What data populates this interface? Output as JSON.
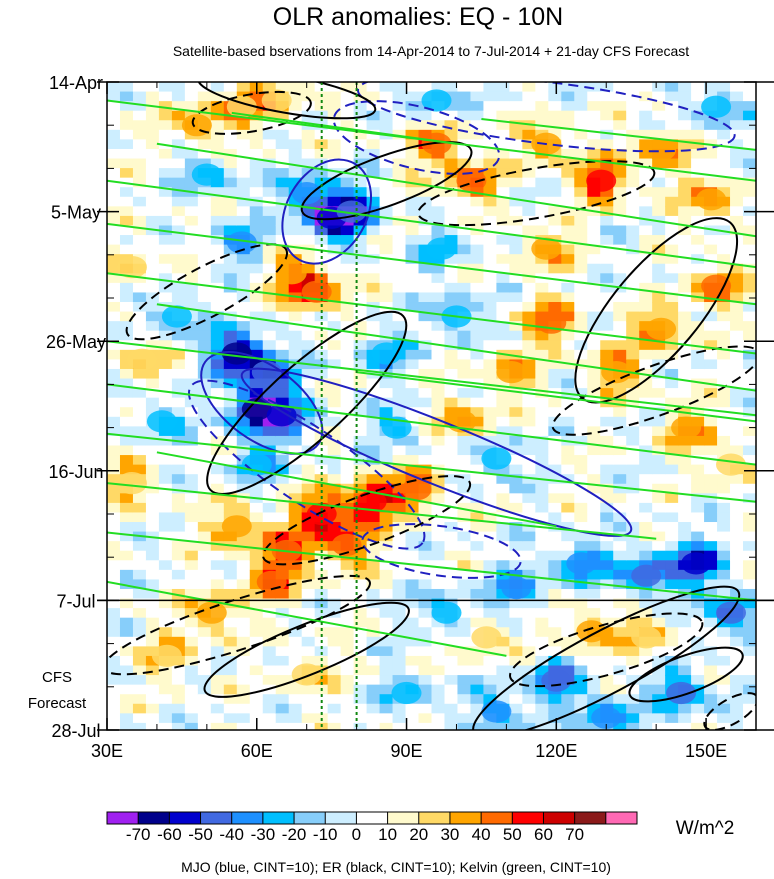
{
  "chart_data": {
    "type": "heatmap",
    "title": "OLR anomalies: EQ - 10N",
    "subtitle": "Satellite-based bservations from 14-Apr-2014 to 7-Jul-2014 + 21-day CFS Forecast",
    "x_axis": {
      "range": [
        30,
        160
      ],
      "ticks": [
        {
          "value": 30,
          "label": "30E"
        },
        {
          "value": 60,
          "label": "60E"
        },
        {
          "value": 90,
          "label": "90E"
        },
        {
          "value": 120,
          "label": "120E"
        },
        {
          "value": 150,
          "label": "150E"
        }
      ],
      "minor_step": 10
    },
    "y_axis": {
      "range_days": [
        0,
        105
      ],
      "inverted": true,
      "ticks": [
        {
          "day": 0,
          "label": "14-Apr"
        },
        {
          "day": 21,
          "label": "5-May"
        },
        {
          "day": 42,
          "label": "26-May"
        },
        {
          "day": 63,
          "label": "16-Jun"
        },
        {
          "day": 84,
          "label": "7-Jul"
        },
        {
          "day": 105,
          "label": "28-Jul"
        }
      ],
      "minor_step_days": 7
    },
    "forecast": {
      "start_day": 84,
      "label_line1": "CFS",
      "label_line2": "Forecast"
    },
    "reference_longitudes": [
      73,
      80
    ],
    "colorbar": {
      "units": "W/m^2",
      "labels": [
        "-70",
        "-60",
        "-50",
        "-40",
        "-30",
        "-20",
        "-10",
        "0",
        "10",
        "20",
        "30",
        "40",
        "50",
        "60",
        "70"
      ],
      "colors": [
        "#a020f0",
        "#00008b",
        "#0000cd",
        "#4169e1",
        "#1e90ff",
        "#00bfff",
        "#87cefa",
        "#cdeeff",
        "#ffffff",
        "#fffacd",
        "#ffd966",
        "#ffa500",
        "#ff6a00",
        "#ff0000",
        "#cd0000",
        "#8b1a1a",
        "#ff69b4"
      ]
    },
    "highlights": [
      {
        "lon": 48,
        "day": 7,
        "v": 32
      },
      {
        "lon": 57,
        "day": 4,
        "v": 28
      },
      {
        "lon": 64,
        "day": 3,
        "v": 26
      },
      {
        "lon": 96,
        "day": 10,
        "v": 40
      },
      {
        "lon": 103,
        "day": 16,
        "v": 44
      },
      {
        "lon": 118,
        "day": 10,
        "v": 34
      },
      {
        "lon": 129,
        "day": 16,
        "v": 52
      },
      {
        "lon": 141,
        "day": 11,
        "v": 38
      },
      {
        "lon": 151,
        "day": 19,
        "v": 36
      },
      {
        "lon": 70,
        "day": 18,
        "v": -38
      },
      {
        "lon": 75,
        "day": 22,
        "v": -56
      },
      {
        "lon": 79,
        "day": 21,
        "v": -48
      },
      {
        "lon": 57,
        "day": 26,
        "v": -32
      },
      {
        "lon": 67,
        "day": 31,
        "v": 36
      },
      {
        "lon": 72,
        "day": 34,
        "v": 48
      },
      {
        "lon": 56,
        "day": 44,
        "v": -66
      },
      {
        "lon": 62,
        "day": 47,
        "v": -48
      },
      {
        "lon": 60,
        "day": 53,
        "v": -62
      },
      {
        "lon": 65,
        "day": 54,
        "v": -52
      },
      {
        "lon": 44,
        "day": 38,
        "v": -28
      },
      {
        "lon": 37,
        "day": 45,
        "v": 24
      },
      {
        "lon": 41,
        "day": 55,
        "v": -22
      },
      {
        "lon": 35,
        "day": 65,
        "v": 28
      },
      {
        "lon": 73,
        "day": 70,
        "v": 55
      },
      {
        "lon": 83,
        "day": 68,
        "v": 58
      },
      {
        "lon": 92,
        "day": 66,
        "v": 40
      },
      {
        "lon": 78,
        "day": 75,
        "v": 46
      },
      {
        "lon": 66,
        "day": 76,
        "v": 44
      },
      {
        "lon": 56,
        "day": 72,
        "v": 38
      },
      {
        "lon": 63,
        "day": 81,
        "v": 40
      },
      {
        "lon": 51,
        "day": 86,
        "v": 32
      },
      {
        "lon": 101,
        "day": 55,
        "v": 34
      },
      {
        "lon": 111,
        "day": 47,
        "v": 30
      },
      {
        "lon": 119,
        "day": 39,
        "v": 40
      },
      {
        "lon": 132,
        "day": 47,
        "v": 36
      },
      {
        "lon": 141,
        "day": 40,
        "v": 38
      },
      {
        "lon": 152,
        "day": 33,
        "v": 40
      },
      {
        "lon": 146,
        "day": 56,
        "v": 34
      },
      {
        "lon": 118,
        "day": 27,
        "v": 30
      },
      {
        "lon": 100,
        "day": 38,
        "v": -30
      },
      {
        "lon": 108,
        "day": 61,
        "v": -28
      },
      {
        "lon": 88,
        "day": 56,
        "v": -26
      },
      {
        "lon": 125,
        "day": 78,
        "v": -40
      },
      {
        "lon": 138,
        "day": 80,
        "v": -46
      },
      {
        "lon": 148,
        "day": 78,
        "v": -60
      },
      {
        "lon": 155,
        "day": 86,
        "v": -44
      },
      {
        "lon": 112,
        "day": 82,
        "v": -38
      },
      {
        "lon": 98,
        "day": 86,
        "v": -30
      },
      {
        "lon": 120,
        "day": 97,
        "v": -46
      },
      {
        "lon": 130,
        "day": 103,
        "v": -40
      },
      {
        "lon": 145,
        "day": 99,
        "v": -42
      },
      {
        "lon": 108,
        "day": 102,
        "v": -34
      },
      {
        "lon": 90,
        "day": 99,
        "v": -24
      },
      {
        "lon": 127,
        "day": 89,
        "v": 30
      },
      {
        "lon": 138,
        "day": 90,
        "v": 26
      },
      {
        "lon": 152,
        "day": 4,
        "v": -30
      },
      {
        "lon": 96,
        "day": 3,
        "v": -24
      },
      {
        "lon": 106,
        "day": 90,
        "v": 22
      },
      {
        "lon": 42,
        "day": 93,
        "v": 24
      },
      {
        "lon": 70,
        "day": 96,
        "v": 20
      },
      {
        "lon": 60,
        "day": 62,
        "v": -30
      },
      {
        "lon": 86,
        "day": 44,
        "v": -28
      },
      {
        "lon": 97,
        "day": 27,
        "v": -22
      },
      {
        "lon": 50,
        "day": 15,
        "v": -26
      },
      {
        "lon": 35,
        "day": 30,
        "v": 20
      },
      {
        "lon": 155,
        "day": 62,
        "v": 22
      }
    ],
    "contours": [
      {
        "group": "mjo",
        "cx": 74,
        "cy": 21,
        "rx": 8,
        "ry": 9,
        "rot": 30,
        "dashed": false
      },
      {
        "group": "mjo",
        "cx": 61,
        "cy": 52,
        "rx": 14,
        "ry": 6,
        "rot": 36,
        "dashed": false
      },
      {
        "group": "mjo",
        "cx": 96,
        "cy": 60,
        "rx": 42,
        "ry": 5,
        "rot": 22,
        "dashed": false
      },
      {
        "group": "mjo",
        "cx": 92,
        "cy": 9,
        "rx": 17,
        "ry": 5,
        "rot": 14,
        "dashed": true
      },
      {
        "group": "mjo",
        "cx": 118,
        "cy": 5,
        "rx": 38,
        "ry": 5,
        "rot": 7,
        "dashed": true
      },
      {
        "group": "mjo",
        "cx": 70,
        "cy": 62,
        "rx": 28,
        "ry": 6,
        "rot": 34,
        "dashed": true
      },
      {
        "group": "mjo",
        "cx": 97,
        "cy": 76,
        "rx": 16,
        "ry": 4,
        "rot": 8,
        "dashed": true
      },
      {
        "group": "er",
        "cx": 66,
        "cy": 2,
        "rx": 18,
        "ry": 3,
        "rot": 10,
        "dashed": false
      },
      {
        "group": "er",
        "cx": 70,
        "cy": 52,
        "rx": 26,
        "ry": 6,
        "rot": -42,
        "dashed": false
      },
      {
        "group": "er",
        "cx": 86,
        "cy": 16,
        "rx": 18,
        "ry": 4,
        "rot": -20,
        "dashed": false
      },
      {
        "group": "er",
        "cx": 140,
        "cy": 37,
        "rx": 23,
        "ry": 7,
        "rot": -50,
        "dashed": false
      },
      {
        "group": "er",
        "cx": 70,
        "cy": 92,
        "rx": 22,
        "ry": 4,
        "rot": -22,
        "dashed": false
      },
      {
        "group": "er",
        "cx": 130,
        "cy": 94,
        "rx": 30,
        "ry": 5,
        "rot": -28,
        "dashed": false
      },
      {
        "group": "er",
        "cx": 146,
        "cy": 96,
        "rx": 12,
        "ry": 3,
        "rot": -20,
        "dashed": false
      },
      {
        "group": "er",
        "cx": 59,
        "cy": 5,
        "rx": 12,
        "ry": 3,
        "rot": -10,
        "dashed": true
      },
      {
        "group": "er",
        "cx": 50,
        "cy": 34,
        "rx": 18,
        "ry": 4,
        "rot": -28,
        "dashed": true
      },
      {
        "group": "er",
        "cx": 116,
        "cy": 18,
        "rx": 24,
        "ry": 4,
        "rot": -10,
        "dashed": true
      },
      {
        "group": "er",
        "cx": 140,
        "cy": 50,
        "rx": 22,
        "ry": 4,
        "rot": -20,
        "dashed": true
      },
      {
        "group": "er",
        "cx": 82,
        "cy": 71,
        "rx": 22,
        "ry": 4,
        "rot": -20,
        "dashed": true
      },
      {
        "group": "er",
        "cx": 56,
        "cy": 88,
        "rx": 28,
        "ry": 4,
        "rot": -18,
        "dashed": true
      },
      {
        "group": "er",
        "cx": 130,
        "cy": 92,
        "rx": 20,
        "ry": 4,
        "rot": -16,
        "dashed": true
      },
      {
        "group": "er",
        "cx": 155,
        "cy": 102,
        "rx": 6,
        "ry": 2,
        "rot": -30,
        "dashed": true
      }
    ],
    "kelvin_lines": [
      [
        [
          30,
          3
        ],
        [
          160,
          16
        ]
      ],
      [
        [
          40,
          10
        ],
        [
          160,
          25
        ]
      ],
      [
        [
          30,
          16
        ],
        [
          160,
          30
        ]
      ],
      [
        [
          30,
          23
        ],
        [
          160,
          36
        ]
      ],
      [
        [
          30,
          31
        ],
        [
          160,
          44
        ]
      ],
      [
        [
          40,
          36
        ],
        [
          160,
          50
        ]
      ],
      [
        [
          30,
          42
        ],
        [
          160,
          54
        ]
      ],
      [
        [
          30,
          49
        ],
        [
          160,
          62
        ]
      ],
      [
        [
          30,
          57
        ],
        [
          160,
          68
        ]
      ],
      [
        [
          30,
          65
        ],
        [
          140,
          74
        ]
      ],
      [
        [
          30,
          73
        ],
        [
          160,
          84
        ]
      ],
      [
        [
          30,
          81
        ],
        [
          110,
          93
        ]
      ],
      [
        [
          55,
          5
        ],
        [
          100,
          10
        ]
      ],
      [
        [
          105,
          6
        ],
        [
          160,
          11
        ]
      ],
      [
        [
          80,
          47
        ],
        [
          160,
          55
        ]
      ],
      [
        [
          40,
          60
        ],
        [
          120,
          72
        ]
      ]
    ],
    "footer": "MJO (blue, CINT=10); ER (black, CINT=10); Kelvin (green, CINT=10)"
  }
}
